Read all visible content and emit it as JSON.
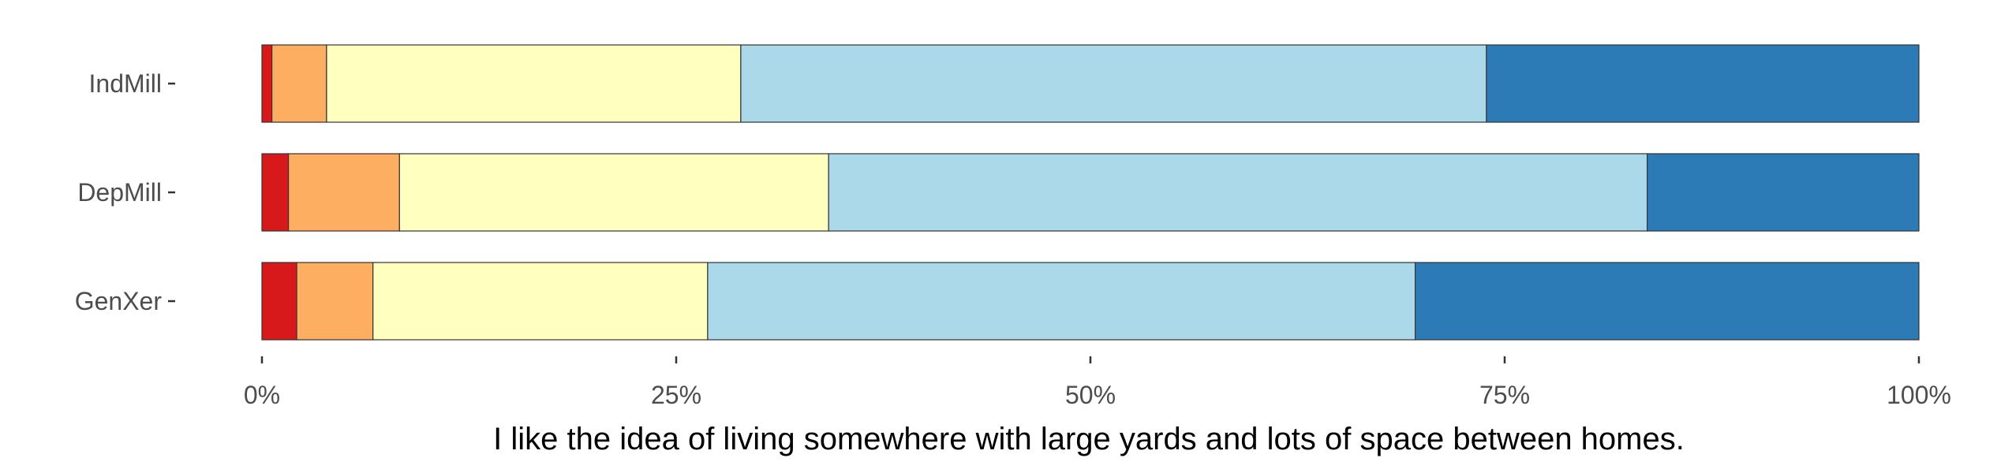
{
  "chart_data": {
    "type": "bar",
    "orientation": "horizontal",
    "stacked": "percent",
    "categories": [
      "IndMill",
      "DepMill",
      "GenXer"
    ],
    "series": [
      {
        "color": "#d7191c",
        "values": [
          0.6,
          1.6,
          2.1
        ]
      },
      {
        "color": "#fdae61",
        "values": [
          3.3,
          6.7,
          4.6
        ]
      },
      {
        "color": "#ffffbf",
        "values": [
          25.0,
          25.9,
          20.2
        ]
      },
      {
        "color": "#abd9e9",
        "values": [
          45.0,
          49.4,
          42.7
        ]
      },
      {
        "color": "#2c7bb6",
        "values": [
          26.1,
          16.4,
          30.4
        ]
      }
    ],
    "xticks": [
      "0%",
      "25%",
      "50%",
      "75%",
      "100%"
    ],
    "xlim": [
      0,
      100
    ],
    "xlabel": "I like the idea of living somewhere with large yards and lots of space between homes.",
    "grid": false,
    "legend": "none"
  }
}
